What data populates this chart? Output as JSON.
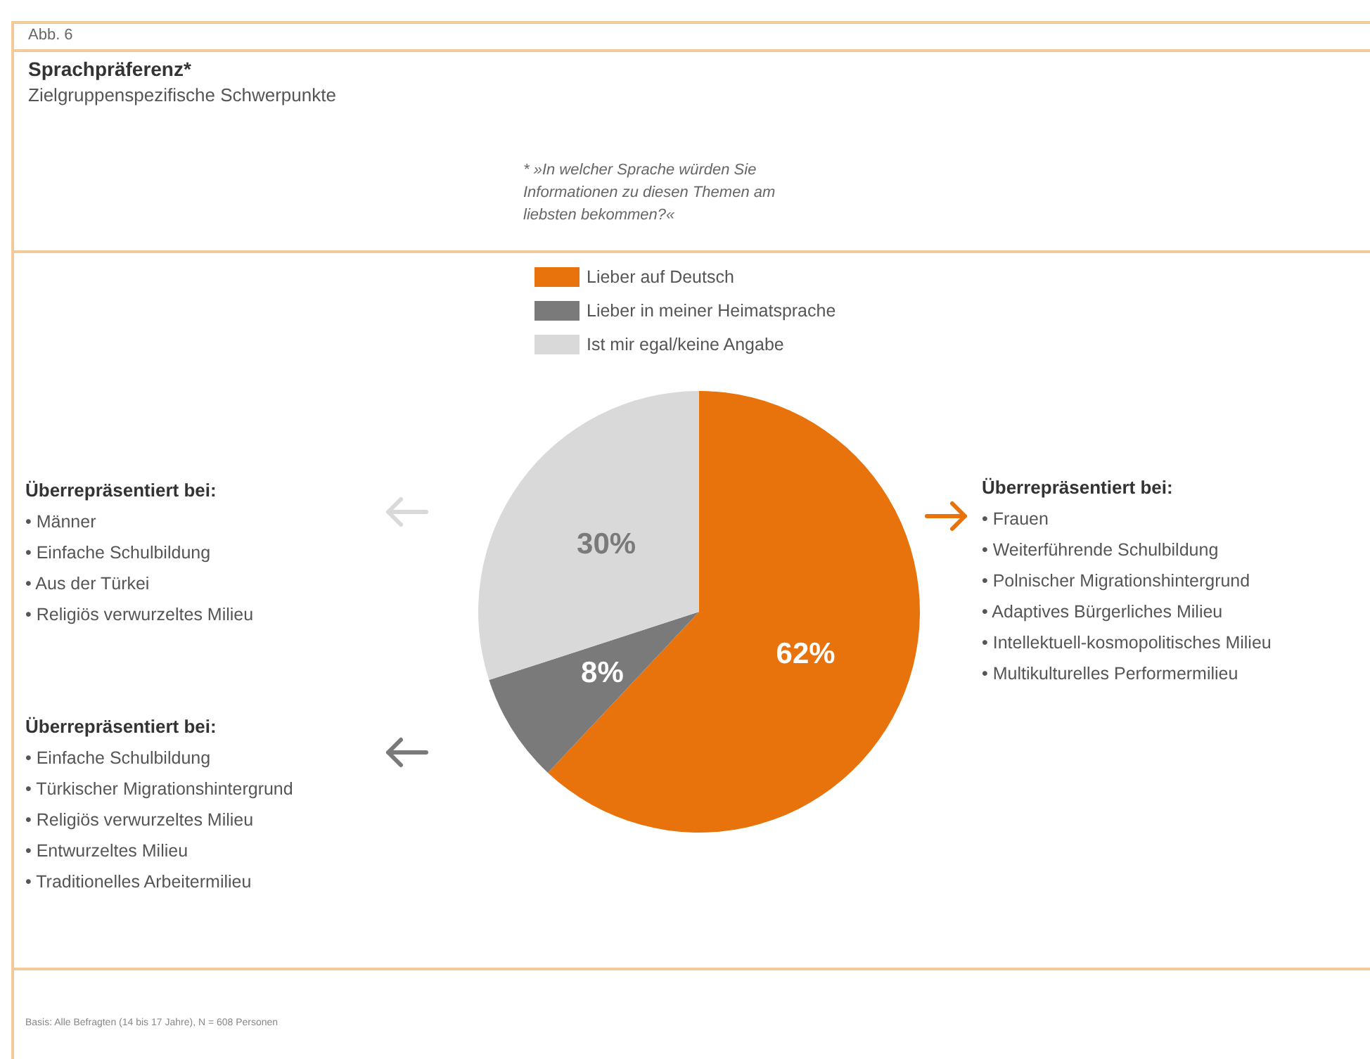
{
  "chart_data": {
    "type": "pie",
    "title": "Sprachpräferenz*",
    "subtitle": "Zielgruppenspezifische Schwerpunkte",
    "categories": [
      "Lieber auf Deutsch",
      "Lieber in meiner Heimatsprache",
      "Ist mir egal/keine Angabe"
    ],
    "values": [
      62,
      8,
      30
    ],
    "colors": [
      "#e8720c",
      "#7a7a7a",
      "#d9d9d9"
    ],
    "value_labels": [
      "62%",
      "8%",
      "30%"
    ],
    "legend": "top",
    "annotations": [
      "Abb. 6",
      "* »In welcher Sprache würden Sie Informationen zu diesen Themen am liebsten bekommen?«",
      "Überrepräsentiert bei:\n• Männer\n• Einfache Schulbildung\n• Aus der Türkei\n• Religiös verwurzeltes Milieu",
      "Überrepräsentiert bei:\n• Einfache Schulbildung\n• Türkischer Migrationshintergrund\n• Religiös verwurzeltes Milieu\n• Entwurzeltes Milieu\n• Traditionelles Arbeitermilieu",
      "Überrepräsentiert bei:\n• Frauen\n• Weiterführende Schulbildung\n• Polnischer Migrationshintergrund\n• Adaptives Bürgerliches Milieu\n• Intellektuell-kosmopolitisches Milieu\n• Multikulturelles Performermilieu",
      "Basis: Alle Befragten (14 bis 17 Jahre), N = 608 Personen"
    ]
  }
}
